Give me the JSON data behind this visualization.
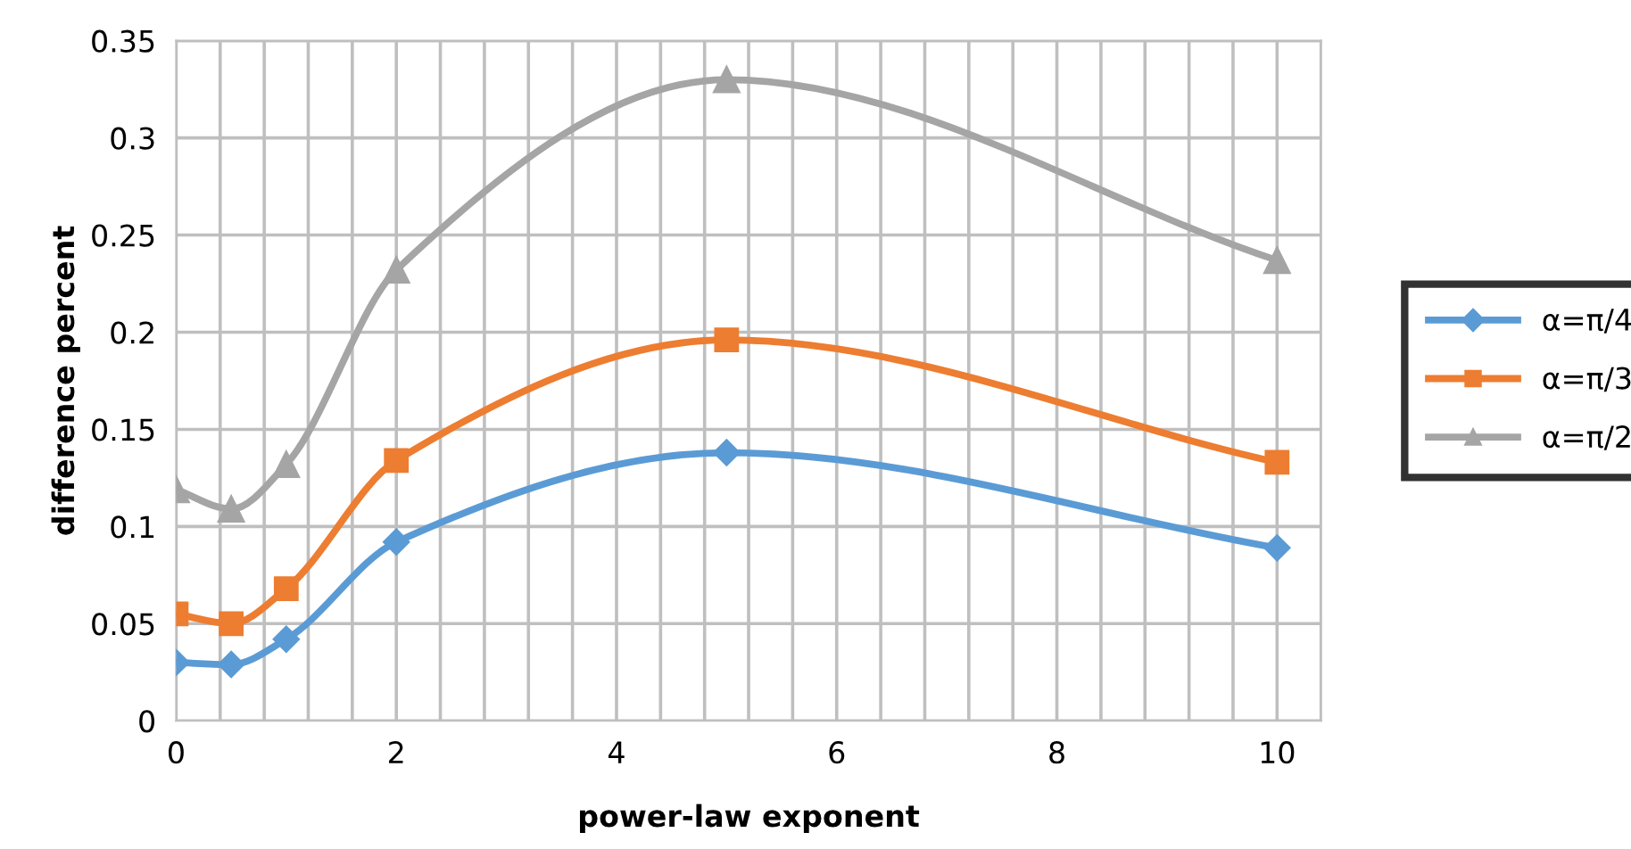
{
  "chart_data": {
    "type": "line",
    "xlabel": "power-law exponent",
    "ylabel": "difference percent",
    "x": [
      0,
      0.5,
      1,
      2,
      5,
      10
    ],
    "series": [
      {
        "name": "α=π/4",
        "color": "#5b9bd5",
        "marker": "diamond",
        "values": [
          0.03,
          0.029,
          0.042,
          0.092,
          0.138,
          0.089
        ]
      },
      {
        "name": "α=π/3",
        "color": "#ed7d31",
        "marker": "square",
        "values": [
          0.055,
          0.05,
          0.068,
          0.134,
          0.196,
          0.133
        ]
      },
      {
        "name": "α=π/2",
        "color": "#a5a5a5",
        "marker": "triangle",
        "values": [
          0.119,
          0.109,
          0.132,
          0.232,
          0.33,
          0.237
        ]
      }
    ],
    "xlim": [
      0,
      10.4
    ],
    "xticks": [
      0,
      {
        "value": 0.4,
        "label": null
      },
      {
        "value": 0.8,
        "label": null
      },
      {
        "value": 1.2,
        "label": null
      },
      {
        "value": 1.6,
        "label": null
      },
      2,
      {
        "value": 2.4,
        "label": null
      },
      {
        "value": 2.8,
        "label": null
      },
      {
        "value": 3.2,
        "label": null
      },
      {
        "value": 3.6,
        "label": null
      },
      4,
      {
        "value": 4.4,
        "label": null
      },
      {
        "value": 4.8,
        "label": null
      },
      {
        "value": 5.2,
        "label": null
      },
      {
        "value": 5.6,
        "label": null
      },
      6,
      {
        "value": 6.4,
        "label": null
      },
      {
        "value": 6.8,
        "label": null
      },
      {
        "value": 7.2,
        "label": null
      },
      {
        "value": 7.6,
        "label": null
      },
      8,
      {
        "value": 8.4,
        "label": null
      },
      {
        "value": 8.8,
        "label": null
      },
      {
        "value": 9.2,
        "label": null
      },
      {
        "value": 9.6,
        "label": null
      },
      10,
      {
        "value": 10.4,
        "label": null
      }
    ],
    "ylim": [
      0,
      0.35
    ],
    "yticks": [
      0,
      0.05,
      0.1,
      0.15,
      0.2,
      0.25,
      0.3,
      0.35
    ],
    "grid": true,
    "legend": "right",
    "line_style": "solid"
  }
}
